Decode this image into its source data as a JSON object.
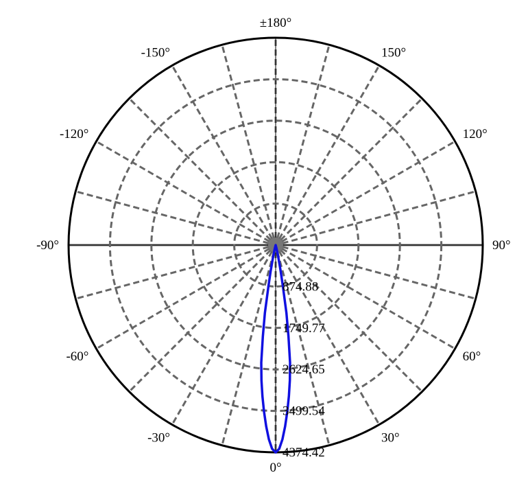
{
  "chart_data": {
    "type": "polar-line",
    "title": "",
    "angle_unit": "degrees",
    "angle_zero": "bottom",
    "angle_ticks": [
      0,
      30,
      60,
      90,
      120,
      150,
      180,
      -150,
      -120,
      -90,
      -60,
      -30
    ],
    "angle_tick_labels": [
      "0°",
      "30°",
      "60°",
      "90°",
      "120°",
      "150°",
      "±180°",
      "-150°",
      "-120°",
      "-90°",
      "-60°",
      "-30°"
    ],
    "angle_grid_step": 15,
    "radial_ticks": [
      874.88,
      1749.77,
      2624.65,
      3499.54,
      4374.42
    ],
    "radial_tick_labels": [
      "874.88",
      "1749.77",
      "2624.65",
      "3499.54",
      "4374.42"
    ],
    "rlim": [
      0,
      4374.42
    ],
    "grid": true,
    "colors": {
      "series": "#1010e0",
      "grid": "#666666",
      "outer": "#000000"
    },
    "series": [
      {
        "angles": [
          -30,
          -20,
          -15,
          -14,
          -13,
          -12,
          -11,
          -10,
          -9,
          -8,
          -7,
          -6,
          -5,
          -4,
          -3,
          -2,
          -1,
          0,
          1,
          2,
          3,
          4,
          5,
          6,
          7,
          8,
          9,
          10,
          11,
          12,
          13,
          14,
          15,
          20,
          30
        ],
        "values": [
          0,
          5,
          30,
          70,
          150,
          300,
          550,
          880,
          1450,
          1950,
          2500,
          2870,
          3200,
          3520,
          3830,
          4100,
          4300,
          4374.42,
          4300,
          4100,
          3830,
          3520,
          3200,
          2870,
          2500,
          1950,
          1450,
          880,
          550,
          300,
          150,
          70,
          30,
          5,
          0
        ]
      }
    ]
  }
}
